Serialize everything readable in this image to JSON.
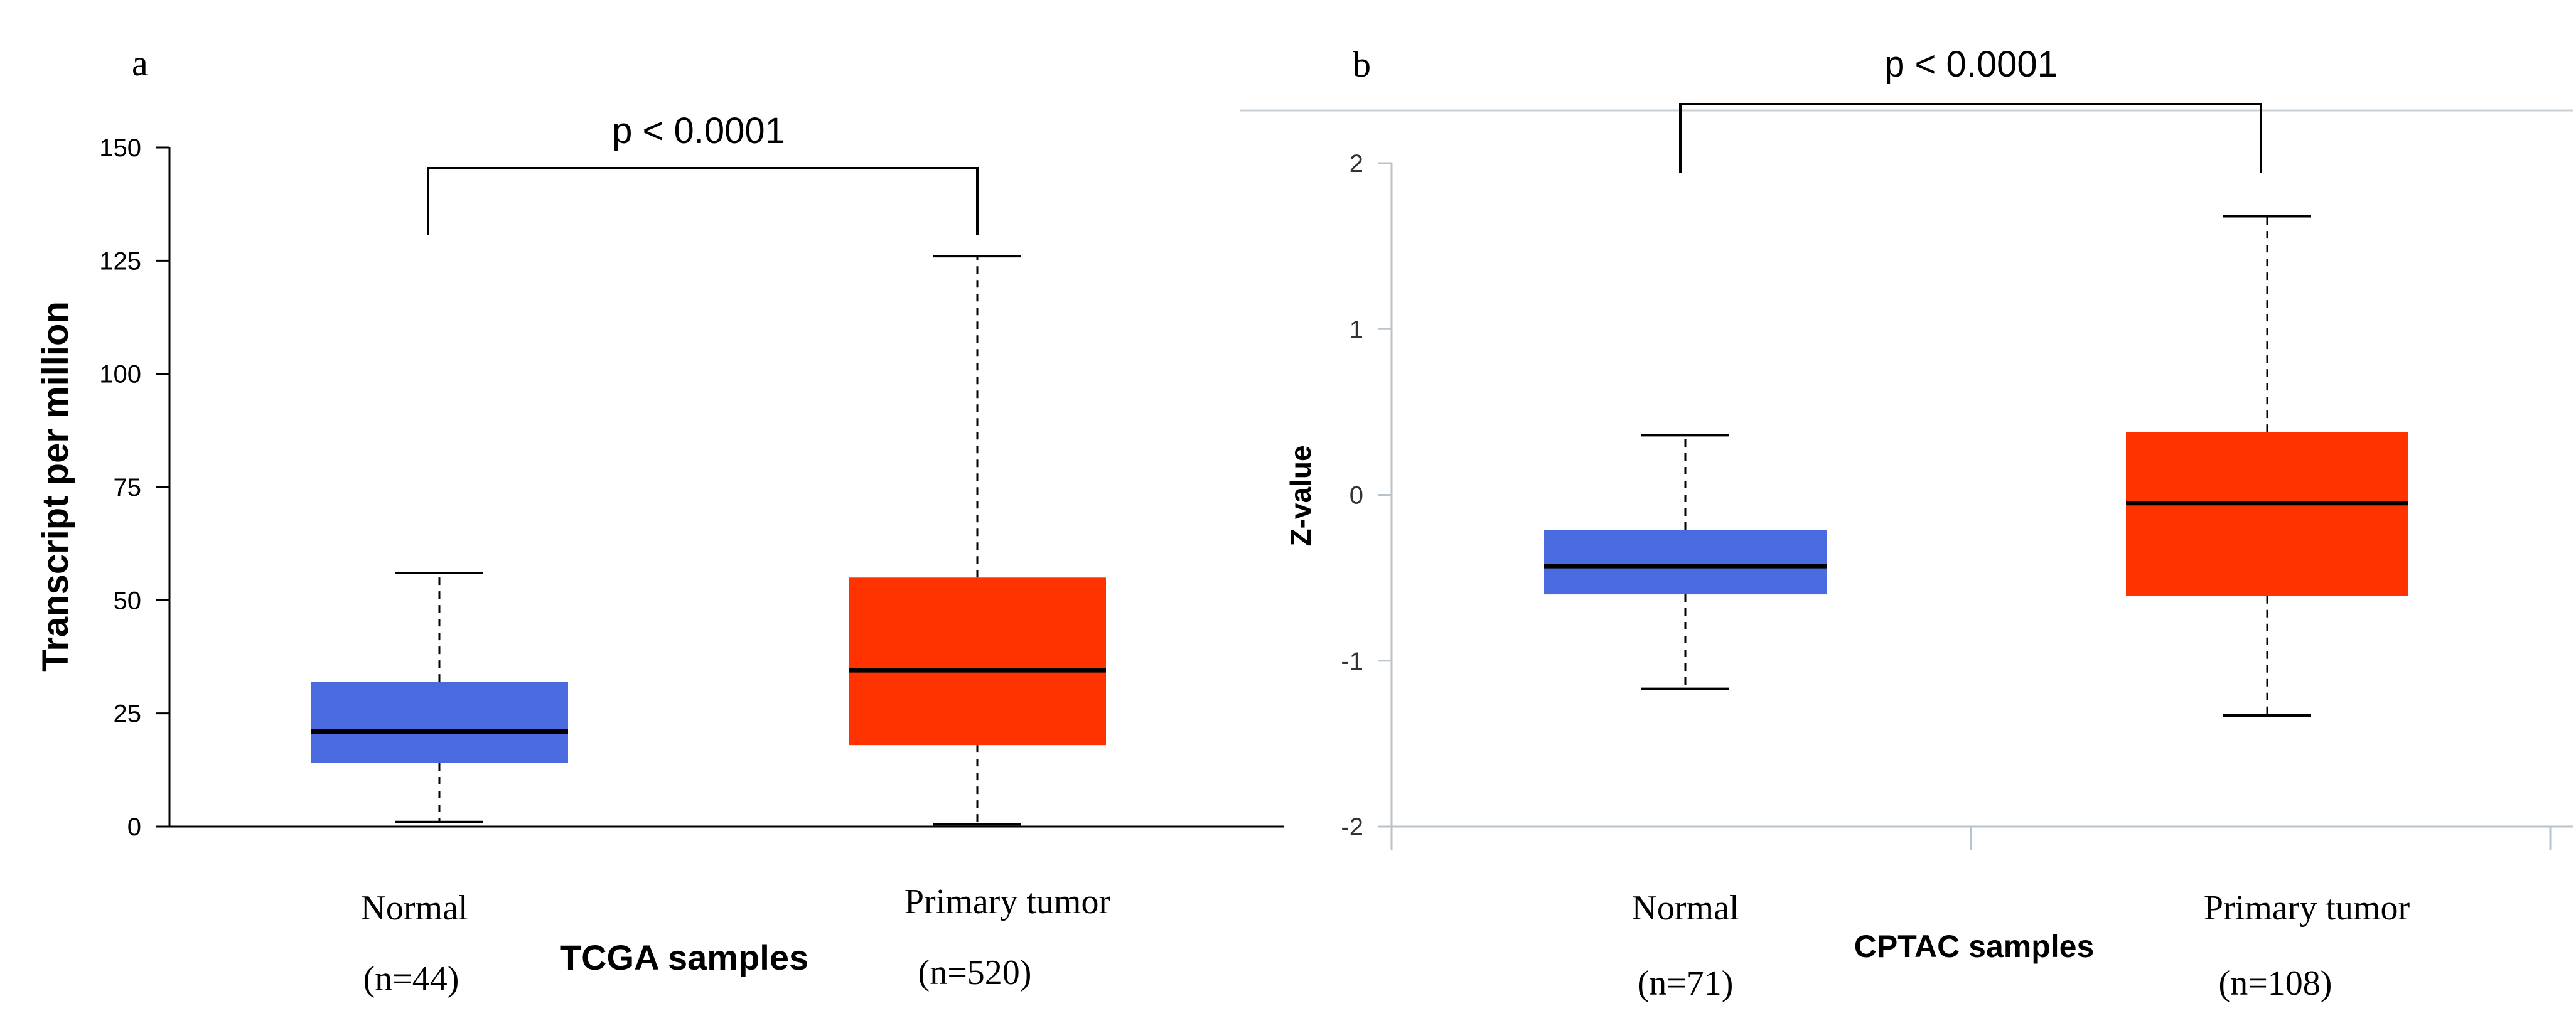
{
  "chart_data": [
    {
      "type": "box",
      "panel_label": "a",
      "ylabel": "Transcript per million",
      "xlabel": "TCGA samples",
      "ylim": [
        0,
        150
      ],
      "yticks": [
        "0",
        "25",
        "50",
        "75",
        "100",
        "125",
        "150"
      ],
      "significance": "p < 0.0001",
      "groups": [
        {
          "name": "Normal",
          "n_label": "(n=44)",
          "min": 1,
          "q1": 14,
          "median": 21,
          "q3": 32,
          "max": 56,
          "color": "#4a6ae0"
        },
        {
          "name": "Primary tumor",
          "n_label": "(n=520)",
          "min": 0.5,
          "q1": 18,
          "median": 34.5,
          "q3": 55,
          "max": 126,
          "color": "#ff3300"
        }
      ]
    },
    {
      "type": "box",
      "panel_label": "b",
      "ylabel": "Z-value",
      "xlabel": "CPTAC samples",
      "ylim": [
        -2,
        2
      ],
      "yticks": [
        "-2",
        "-1",
        "0",
        "1",
        "2"
      ],
      "significance": "p < 0.0001",
      "groups": [
        {
          "name": "Normal",
          "n_label": "(n=71)",
          "min": -1.17,
          "q1": -0.6,
          "median": -0.43,
          "q3": -0.21,
          "max": 0.36,
          "color": "#4a6ae0"
        },
        {
          "name": "Primary tumor",
          "n_label": "(n=108)",
          "min": -1.33,
          "q1": -0.61,
          "median": -0.05,
          "q3": 0.38,
          "max": 1.68,
          "color": "#ff3300"
        }
      ]
    }
  ]
}
